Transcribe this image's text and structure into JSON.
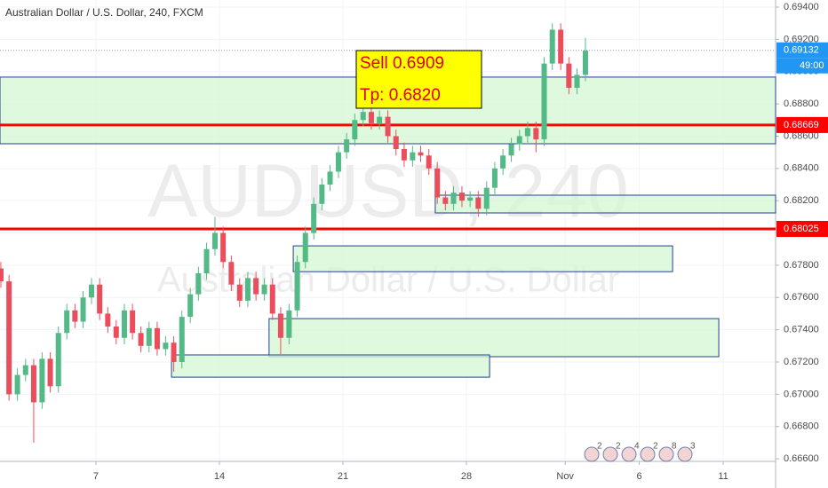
{
  "chart_data": {
    "type": "candlestick",
    "title": "Australian Dollar / U.S. Dollar, 240, FXCM",
    "watermark": "AUDUSD, 240",
    "watermark_subtitle": "Australian Dollar / U.S. Dollar",
    "x": [
      -3.85,
      -3.52,
      -3.18,
      -2.85,
      -2.52,
      -2.18,
      -1.85,
      -1.52,
      -1.18,
      -0.85,
      -0.52,
      -0.18,
      0.15,
      0.48,
      0.82,
      1.15,
      1.48,
      1.82,
      2.15,
      2.48,
      2.82,
      3.15,
      3.48,
      3.82,
      4.15,
      4.48,
      4.82,
      5.15,
      5.48,
      5.82,
      6.15,
      6.48,
      6.82,
      7.15,
      7.48,
      7.82,
      8.15,
      8.48,
      8.82,
      9.15,
      9.48,
      9.82,
      10.15,
      10.48,
      10.82,
      11.15,
      11.48,
      11.82,
      12.15,
      12.48,
      12.82,
      13.15,
      13.48,
      13.82,
      14.15,
      14.48,
      14.82,
      15.15,
      15.48,
      15.82,
      16.15,
      16.48,
      16.82,
      17.15,
      17.48,
      17.82,
      18.15,
      18.48,
      18.82,
      19.15,
      19.48,
      19.82
    ],
    "open": [
      0.6778,
      0.677,
      0.67,
      0.6712,
      0.6718,
      0.6695,
      0.6722,
      0.6705,
      0.6738,
      0.6752,
      0.6745,
      0.676,
      0.6768,
      0.675,
      0.6742,
      0.6735,
      0.6752,
      0.6738,
      0.673,
      0.6741,
      0.6728,
      0.6732,
      0.672,
      0.6748,
      0.6762,
      0.6775,
      0.679,
      0.68,
      0.6782,
      0.6768,
      0.6758,
      0.6772,
      0.6762,
      0.6768,
      0.675,
      0.6735,
      0.6752,
      0.6782,
      0.68,
      0.6818,
      0.683,
      0.6838,
      0.685,
      0.6858,
      0.687,
      0.6875,
      0.6868,
      0.6872,
      0.686,
      0.6852,
      0.6845,
      0.685,
      0.6848,
      0.684,
      0.6822,
      0.6818,
      0.6825,
      0.682,
      0.6822,
      0.6815,
      0.6828,
      0.684,
      0.6848,
      0.6855,
      0.686,
      0.6865,
      0.6858,
      0.6905,
      0.6926,
      0.6905,
      0.689,
      0.6898
    ],
    "high": [
      0.6782,
      0.6774,
      0.6716,
      0.6722,
      0.6722,
      0.6726,
      0.6726,
      0.6742,
      0.6756,
      0.6756,
      0.6764,
      0.6772,
      0.6772,
      0.6754,
      0.6746,
      0.6756,
      0.6756,
      0.6742,
      0.6745,
      0.6745,
      0.6736,
      0.6736,
      0.6752,
      0.6766,
      0.6779,
      0.6794,
      0.681,
      0.6804,
      0.6786,
      0.6772,
      0.6776,
      0.6776,
      0.6772,
      0.6772,
      0.6754,
      0.6756,
      0.6786,
      0.6804,
      0.6822,
      0.6834,
      0.6842,
      0.6854,
      0.6862,
      0.6874,
      0.6885,
      0.6879,
      0.6876,
      0.6876,
      0.6864,
      0.6856,
      0.6854,
      0.6854,
      0.6852,
      0.6844,
      0.6826,
      0.6829,
      0.6829,
      0.6826,
      0.6826,
      0.6832,
      0.6844,
      0.6852,
      0.6859,
      0.6864,
      0.6869,
      0.6869,
      0.6909,
      0.693,
      0.693,
      0.6909,
      0.6902,
      0.6921
    ],
    "low": [
      0.6766,
      0.6696,
      0.6696,
      0.6708,
      0.667,
      0.6691,
      0.6701,
      0.6701,
      0.6734,
      0.6741,
      0.6741,
      0.6756,
      0.6746,
      0.6738,
      0.6731,
      0.6731,
      0.6734,
      0.6726,
      0.6726,
      0.6724,
      0.6724,
      0.6714,
      0.6716,
      0.6744,
      0.6758,
      0.6771,
      0.6786,
      0.6778,
      0.6764,
      0.6754,
      0.6754,
      0.6758,
      0.6758,
      0.6746,
      0.6725,
      0.6731,
      0.6748,
      0.6778,
      0.6796,
      0.6814,
      0.6826,
      0.6834,
      0.6846,
      0.6854,
      0.6866,
      0.6864,
      0.6864,
      0.6856,
      0.6848,
      0.6841,
      0.6841,
      0.6844,
      0.6836,
      0.6818,
      0.6814,
      0.6814,
      0.6816,
      0.6816,
      0.681,
      0.6811,
      0.6824,
      0.6836,
      0.6844,
      0.6851,
      0.6856,
      0.685,
      0.6854,
      0.6901,
      0.6901,
      0.6886,
      0.6886,
      0.6894
    ],
    "close": [
      0.677,
      0.67,
      0.6712,
      0.6718,
      0.6695,
      0.6722,
      0.6705,
      0.6738,
      0.6752,
      0.6745,
      0.676,
      0.6768,
      0.675,
      0.6742,
      0.6735,
      0.6752,
      0.6738,
      0.673,
      0.6741,
      0.6728,
      0.6732,
      0.672,
      0.6748,
      0.6762,
      0.6775,
      0.679,
      0.68,
      0.6782,
      0.6768,
      0.6758,
      0.6772,
      0.6762,
      0.6768,
      0.675,
      0.6735,
      0.6752,
      0.6782,
      0.68,
      0.6818,
      0.683,
      0.6838,
      0.685,
      0.6858,
      0.687,
      0.6875,
      0.6868,
      0.6872,
      0.686,
      0.6852,
      0.6845,
      0.685,
      0.6848,
      0.684,
      0.6822,
      0.6818,
      0.6825,
      0.682,
      0.6822,
      0.6815,
      0.6828,
      0.684,
      0.6848,
      0.6855,
      0.686,
      0.6865,
      0.6858,
      0.6905,
      0.6926,
      0.6905,
      0.689,
      0.6898,
      0.6913
    ],
    "up_color": "#53b987",
    "down_color": "#eb4d5c",
    "xlim": [
      -3.885,
      27.52
    ],
    "xticks": [
      {
        "value": 0,
        "label": "7"
      },
      {
        "value": 5,
        "label": "14"
      },
      {
        "value": 10,
        "label": "21"
      },
      {
        "value": 15,
        "label": "28"
      },
      {
        "value": 19,
        "label": "Nov"
      },
      {
        "value": 22,
        "label": "6"
      },
      {
        "value": 25.4,
        "label": "11"
      }
    ],
    "ylim": [
      0.66584,
      0.69444
    ],
    "yticks": [
      {
        "value": 0.694,
        "label": "0.69400"
      },
      {
        "value": 0.692,
        "label": "0.69200"
      },
      {
        "value": 0.69,
        "label": "0.69000"
      },
      {
        "value": 0.688,
        "label": "0.68800"
      },
      {
        "value": 0.686,
        "label": "0.68600"
      },
      {
        "value": 0.684,
        "label": "0.68400"
      },
      {
        "value": 0.682,
        "label": "0.68200"
      },
      {
        "value": 0.68,
        "label": "0.68000"
      },
      {
        "value": 0.678,
        "label": "0.67800"
      },
      {
        "value": 0.676,
        "label": "0.67600"
      },
      {
        "value": 0.674,
        "label": "0.67400"
      },
      {
        "value": 0.672,
        "label": "0.67200"
      },
      {
        "value": 0.67,
        "label": "0.67000"
      },
      {
        "value": 0.668,
        "label": "0.66800"
      },
      {
        "value": 0.666,
        "label": "0.66600"
      }
    ],
    "grid": true,
    "zones": [
      {
        "x0": -3.885,
        "x1": 27.52,
        "y0": 0.68553,
        "y1": 0.68966
      },
      {
        "x0": 13.74,
        "x1": 27.52,
        "y0": 0.68124,
        "y1": 0.68234
      },
      {
        "x0": 7.99,
        "x1": 23.35,
        "y0": 0.6776,
        "y1": 0.6792
      },
      {
        "x0": 7.01,
        "x1": 25.22,
        "y0": 0.67233,
        "y1": 0.67469
      },
      {
        "x0": 3.06,
        "x1": 15.94,
        "y0": 0.67106,
        "y1": 0.67244
      }
    ],
    "zone_fill": "#d4f7d4",
    "zone_border": "#1f3f94",
    "levels": [
      0.68669,
      0.68025
    ],
    "level_color": "#ff0000",
    "last_price": 0.69132,
    "last_price_color": "#2196f3",
    "countdown": "49:00",
    "annotation": [
      "Sell 0.6909",
      "Tp: 0.6820"
    ],
    "events": [
      "2",
      "2",
      "4",
      "2",
      "8",
      "3"
    ]
  }
}
